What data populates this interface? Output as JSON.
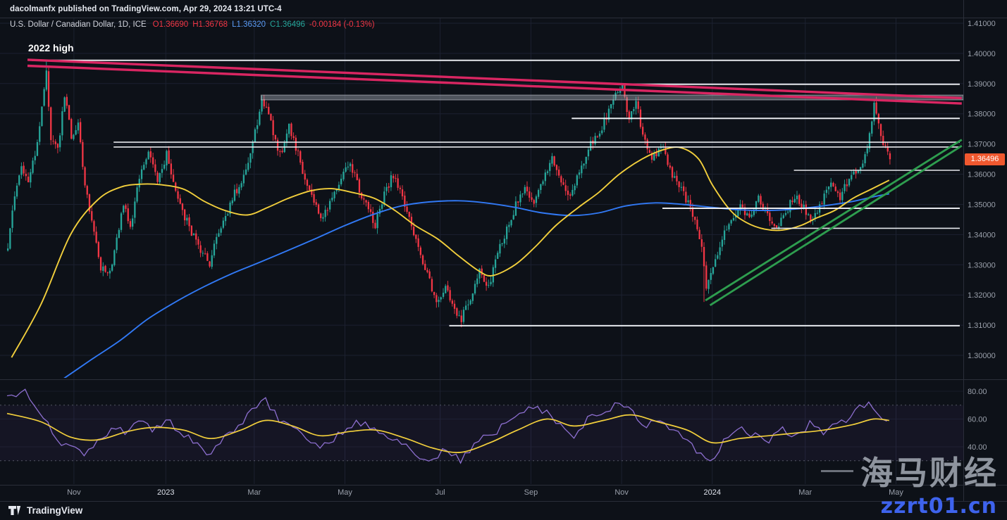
{
  "header": {
    "publisher": "dacolmanfx published on TradingView.com, Apr 29, 2024 13:21 UTC-4"
  },
  "legend": {
    "title": "U.S. Dollar / Canadian Dollar, 1D, ICE",
    "values": [
      {
        "name": "open",
        "text": "O1.36690",
        "color": "#f23645"
      },
      {
        "name": "high",
        "text": "H1.36768",
        "color": "#f23645"
      },
      {
        "name": "low",
        "text": "L1.36320",
        "color": "#5b9cf6"
      },
      {
        "name": "close",
        "text": "C1.36496",
        "color": "#26a69a"
      },
      {
        "name": "change",
        "text": "-0.00184 (-0.13%)",
        "color": "#f23645"
      }
    ]
  },
  "annotations": {
    "high_label": "2022 high"
  },
  "price_axis": {
    "last_price": "1.36496",
    "badge_color": "#f0582f"
  },
  "time_axis": {
    "ticks": [
      {
        "label": "Nov",
        "day": 29.5,
        "year": false
      },
      {
        "label": "2023",
        "day": 70,
        "year": true
      },
      {
        "label": "Mar",
        "day": 109,
        "year": false
      },
      {
        "label": "May",
        "day": 149,
        "year": false
      },
      {
        "label": "Jul",
        "day": 191,
        "year": false
      },
      {
        "label": "Sep",
        "day": 231,
        "year": false
      },
      {
        "label": "Nov",
        "day": 271,
        "year": false
      },
      {
        "label": "2024",
        "day": 311,
        "year": true
      },
      {
        "label": "Mar",
        "day": 352,
        "year": false
      },
      {
        "label": "May",
        "day": 392,
        "year": false
      }
    ]
  },
  "footer": {
    "logo_text": "TradingView"
  },
  "watermark": {
    "line1": "海马财经",
    "line2": "zzrt01.cn",
    "color1": "rgba(160,166,176,0.88)",
    "color2": "#3e63ed"
  },
  "colors": {
    "background": "#0d1118",
    "grid": "#1c2130",
    "separator": "#2a2e39",
    "axis_text": "#9aa0ab",
    "axis_text_bright": "#dde1ea",
    "up": "#26a69a",
    "down": "#f23645",
    "ma_fast": "#f2cf3c",
    "ma_slow": "#3179f5",
    "rsi": "#8d6fd0",
    "rsi_ma": "#f2cf3c",
    "rsi_band": "rgba(126,87,194,0.07)",
    "rsi_guide": "#8a8e9a",
    "level": "#f2f4f8",
    "trendline_down": "#d92662",
    "trendline_up": "#2e9e4f",
    "zone_fill": "rgba(160,166,178,0.45)",
    "zone_stroke": "rgba(200,204,212,0.6)"
  },
  "chart_data": {
    "type": "candlestick",
    "symbol": "USDCAD",
    "title": "U.S. Dollar / Canadian Dollar, 1D, ICE",
    "timeframe": "1D",
    "exchange": "ICE",
    "last": {
      "open": 1.3669,
      "high": 1.36768,
      "low": 1.3632,
      "close": 1.36496,
      "change": -0.00184,
      "change_pct": -0.13
    },
    "y_range": [
      1.2922,
      1.4119
    ],
    "rsi_range": [
      12,
      88
    ],
    "day_count": 389,
    "price_ticks": [
      1.41,
      1.4,
      1.39,
      1.38,
      1.37,
      1.36,
      1.35,
      1.34,
      1.33,
      1.32,
      1.31,
      1.3
    ],
    "rsi_ticks": [
      80,
      60,
      40
    ],
    "rsi_guides": [
      70,
      30
    ],
    "price_path": [
      [
        0,
        1.336
      ],
      [
        3,
        1.352
      ],
      [
        6,
        1.3635
      ],
      [
        9,
        1.356
      ],
      [
        13,
        1.371
      ],
      [
        16,
        1.388
      ],
      [
        17,
        1.394
      ],
      [
        19,
        1.3725
      ],
      [
        22,
        1.368
      ],
      [
        25,
        1.386
      ],
      [
        28,
        1.372
      ],
      [
        31,
        1.377
      ],
      [
        34,
        1.356
      ],
      [
        38,
        1.342
      ],
      [
        41,
        1.3295
      ],
      [
        45,
        1.327
      ],
      [
        48,
        1.3385
      ],
      [
        51,
        1.35
      ],
      [
        54,
        1.3415
      ],
      [
        58,
        1.359
      ],
      [
        62,
        1.368
      ],
      [
        66,
        1.358
      ],
      [
        70,
        1.3665
      ],
      [
        74,
        1.3545
      ],
      [
        78,
        1.346
      ],
      [
        82,
        1.339
      ],
      [
        86,
        1.334
      ],
      [
        89,
        1.3295
      ],
      [
        92,
        1.339
      ],
      [
        96,
        1.345
      ],
      [
        100,
        1.3535
      ],
      [
        104,
        1.359
      ],
      [
        108,
        1.37
      ],
      [
        112,
        1.3845
      ],
      [
        115,
        1.3795
      ],
      [
        118,
        1.3705
      ],
      [
        121,
        1.366
      ],
      [
        124,
        1.3755
      ],
      [
        127,
        1.369
      ],
      [
        131,
        1.359
      ],
      [
        135,
        1.35
      ],
      [
        139,
        1.345
      ],
      [
        143,
        1.3525
      ],
      [
        147,
        1.3585
      ],
      [
        151,
        1.3635
      ],
      [
        154,
        1.357
      ],
      [
        158,
        1.3495
      ],
      [
        162,
        1.343
      ],
      [
        166,
        1.353
      ],
      [
        170,
        1.36
      ],
      [
        173,
        1.354
      ],
      [
        177,
        1.3445
      ],
      [
        181,
        1.335
      ],
      [
        185,
        1.3265
      ],
      [
        189,
        1.318
      ],
      [
        193,
        1.322
      ],
      [
        197,
        1.3155
      ],
      [
        200,
        1.312
      ],
      [
        204,
        1.3195
      ],
      [
        208,
        1.328
      ],
      [
        212,
        1.3225
      ],
      [
        216,
        1.3335
      ],
      [
        220,
        1.3415
      ],
      [
        224,
        1.35
      ],
      [
        228,
        1.356
      ],
      [
        232,
        1.3505
      ],
      [
        236,
        1.359
      ],
      [
        240,
        1.365
      ],
      [
        244,
        1.358
      ],
      [
        248,
        1.3515
      ],
      [
        252,
        1.3605
      ],
      [
        256,
        1.369
      ],
      [
        260,
        1.3725
      ],
      [
        264,
        1.379
      ],
      [
        268,
        1.3875
      ],
      [
        271,
        1.389
      ],
      [
        274,
        1.378
      ],
      [
        277,
        1.3845
      ],
      [
        280,
        1.372
      ],
      [
        284,
        1.3645
      ],
      [
        288,
        1.37
      ],
      [
        292,
        1.3615
      ],
      [
        296,
        1.356
      ],
      [
        300,
        1.3505
      ],
      [
        303,
        1.3455
      ],
      [
        306,
        1.3365
      ],
      [
        308,
        1.3235
      ],
      [
        311,
        1.329
      ],
      [
        315,
        1.3385
      ],
      [
        319,
        1.345
      ],
      [
        323,
        1.3495
      ],
      [
        327,
        1.3455
      ],
      [
        331,
        1.352
      ],
      [
        335,
        1.3465
      ],
      [
        339,
        1.341
      ],
      [
        343,
        1.3475
      ],
      [
        347,
        1.353
      ],
      [
        351,
        1.349
      ],
      [
        355,
        1.3445
      ],
      [
        359,
        1.351
      ],
      [
        363,
        1.356
      ],
      [
        367,
        1.3525
      ],
      [
        371,
        1.3585
      ],
      [
        376,
        1.3615
      ],
      [
        379,
        1.3695
      ],
      [
        382,
        1.383
      ],
      [
        384,
        1.377
      ],
      [
        386,
        1.371
      ],
      [
        388,
        1.367
      ],
      [
        389,
        1.36496
      ]
    ],
    "pinned": {
      "17": {
        "high": 1.3977
      },
      "200": {
        "low": 1.3093
      },
      "271": {
        "high": 1.3899
      },
      "307": {
        "low": 1.3177
      },
      "382": {
        "high": 1.3846
      },
      "389": {
        "open": 1.3669,
        "high": 1.36768,
        "low": 1.3632,
        "close": 1.36496
      }
    },
    "sma_fast": [
      [
        2,
        1.2993
      ],
      [
        15,
        1.317
      ],
      [
        28,
        1.34
      ],
      [
        40,
        1.3515
      ],
      [
        50,
        1.3557
      ],
      [
        59,
        1.3567
      ],
      [
        68,
        1.3565
      ],
      [
        78,
        1.355
      ],
      [
        87,
        1.351
      ],
      [
        96,
        1.348
      ],
      [
        106,
        1.3465
      ],
      [
        115,
        1.349
      ],
      [
        124,
        1.352
      ],
      [
        134,
        1.3545
      ],
      [
        143,
        1.3552
      ],
      [
        152,
        1.354
      ],
      [
        162,
        1.352
      ],
      [
        171,
        1.348
      ],
      [
        180,
        1.343
      ],
      [
        190,
        1.3385
      ],
      [
        199,
        1.333
      ],
      [
        208,
        1.328
      ],
      [
        214,
        1.3264
      ],
      [
        224,
        1.33
      ],
      [
        233,
        1.336
      ],
      [
        242,
        1.343
      ],
      [
        252,
        1.349
      ],
      [
        261,
        1.354
      ],
      [
        270,
        1.36
      ],
      [
        280,
        1.365
      ],
      [
        289,
        1.368
      ],
      [
        297,
        1.3688
      ],
      [
        305,
        1.365
      ],
      [
        311,
        1.3565
      ],
      [
        319,
        1.348
      ],
      [
        326,
        1.344
      ],
      [
        334,
        1.3418
      ],
      [
        342,
        1.3415
      ],
      [
        350,
        1.343
      ],
      [
        357,
        1.3455
      ],
      [
        365,
        1.348
      ],
      [
        373,
        1.352
      ],
      [
        381,
        1.355
      ],
      [
        389,
        1.358
      ]
    ],
    "sma_slow": [
      [
        24,
        1.2918
      ],
      [
        37,
        1.2985
      ],
      [
        50,
        1.305
      ],
      [
        62,
        1.312
      ],
      [
        75,
        1.318
      ],
      [
        87,
        1.3228
      ],
      [
        99,
        1.327
      ],
      [
        112,
        1.331
      ],
      [
        124,
        1.3348
      ],
      [
        137,
        1.339
      ],
      [
        149,
        1.343
      ],
      [
        162,
        1.3468
      ],
      [
        174,
        1.3495
      ],
      [
        186,
        1.3508
      ],
      [
        199,
        1.3512
      ],
      [
        211,
        1.3505
      ],
      [
        224,
        1.349
      ],
      [
        236,
        1.3472
      ],
      [
        249,
        1.3463
      ],
      [
        261,
        1.3472
      ],
      [
        273,
        1.3495
      ],
      [
        286,
        1.3505
      ],
      [
        298,
        1.35
      ],
      [
        311,
        1.349
      ],
      [
        323,
        1.3482
      ],
      [
        336,
        1.348
      ],
      [
        348,
        1.3485
      ],
      [
        360,
        1.3495
      ],
      [
        373,
        1.351
      ],
      [
        382,
        1.3525
      ],
      [
        389,
        1.3535
      ]
    ],
    "rsi_path": [
      [
        0,
        76
      ],
      [
        8,
        82
      ],
      [
        14,
        66
      ],
      [
        22,
        46
      ],
      [
        28,
        38
      ],
      [
        34,
        35
      ],
      [
        40,
        43
      ],
      [
        47,
        55
      ],
      [
        53,
        50
      ],
      [
        59,
        58
      ],
      [
        65,
        52
      ],
      [
        71,
        58
      ],
      [
        78,
        48
      ],
      [
        84,
        42
      ],
      [
        90,
        34
      ],
      [
        96,
        48
      ],
      [
        103,
        56
      ],
      [
        109,
        67
      ],
      [
        114,
        74
      ],
      [
        120,
        60
      ],
      [
        126,
        54
      ],
      [
        132,
        47
      ],
      [
        138,
        40
      ],
      [
        144,
        46
      ],
      [
        151,
        56
      ],
      [
        157,
        58
      ],
      [
        163,
        51
      ],
      [
        169,
        47
      ],
      [
        176,
        41
      ],
      [
        182,
        34
      ],
      [
        188,
        30
      ],
      [
        194,
        39
      ],
      [
        200,
        31
      ],
      [
        207,
        42
      ],
      [
        213,
        49
      ],
      [
        219,
        55
      ],
      [
        225,
        63
      ],
      [
        231,
        69
      ],
      [
        238,
        64
      ],
      [
        244,
        54
      ],
      [
        250,
        48
      ],
      [
        256,
        60
      ],
      [
        263,
        66
      ],
      [
        269,
        71
      ],
      [
        275,
        67
      ],
      [
        281,
        55
      ],
      [
        287,
        58
      ],
      [
        294,
        51
      ],
      [
        300,
        44
      ],
      [
        306,
        33
      ],
      [
        311,
        27
      ],
      [
        317,
        46
      ],
      [
        323,
        56
      ],
      [
        329,
        48
      ],
      [
        336,
        43
      ],
      [
        342,
        53
      ],
      [
        348,
        48
      ],
      [
        354,
        56
      ],
      [
        360,
        50
      ],
      [
        367,
        58
      ],
      [
        373,
        63
      ],
      [
        380,
        74
      ],
      [
        385,
        64
      ],
      [
        389,
        56
      ]
    ],
    "rsi_ma_path": [
      [
        0,
        64
      ],
      [
        15,
        58
      ],
      [
        28,
        47
      ],
      [
        40,
        45
      ],
      [
        53,
        51
      ],
      [
        65,
        54
      ],
      [
        78,
        52
      ],
      [
        90,
        46
      ],
      [
        103,
        52
      ],
      [
        114,
        59
      ],
      [
        126,
        55
      ],
      [
        138,
        48
      ],
      [
        151,
        51
      ],
      [
        163,
        52
      ],
      [
        176,
        46
      ],
      [
        188,
        39
      ],
      [
        200,
        36
      ],
      [
        213,
        43
      ],
      [
        225,
        52
      ],
      [
        238,
        60
      ],
      [
        250,
        55
      ],
      [
        263,
        59
      ],
      [
        275,
        63
      ],
      [
        287,
        58
      ],
      [
        300,
        52
      ],
      [
        311,
        43
      ],
      [
        323,
        46
      ],
      [
        336,
        48
      ],
      [
        348,
        50
      ],
      [
        360,
        52
      ],
      [
        373,
        56
      ],
      [
        382,
        60
      ],
      [
        389,
        59
      ]
    ],
    "levels": [
      {
        "price": 1.3977,
        "from_day": 11,
        "width": 2
      },
      {
        "price": 1.3898,
        "from_day": 270,
        "width": 2
      },
      {
        "price": 1.3785,
        "from_day": 249,
        "width": 2
      },
      {
        "price": 1.3706,
        "from_day": 47,
        "width": 1.6
      },
      {
        "price": 1.369,
        "from_day": 47,
        "width": 1.6
      },
      {
        "price": 1.3613,
        "from_day": 347,
        "width": 1.6
      },
      {
        "price": 1.3487,
        "from_day": 289,
        "width": 2
      },
      {
        "price": 1.3421,
        "from_day": 337,
        "width": 1.6
      },
      {
        "price": 1.3098,
        "from_day": 195,
        "width": 2
      }
    ],
    "zone": {
      "top": 1.3862,
      "bottom": 1.3846,
      "from_day": 112
    },
    "trendlines_down": [
      [
        [
          9,
          1.3979
        ],
        [
          421,
          1.3852
        ]
      ],
      [
        [
          9,
          1.3959
        ],
        [
          421,
          1.3834
        ]
      ]
    ],
    "trendlines_up": [
      [
        [
          308,
          1.3182
        ],
        [
          421,
          1.3714
        ]
      ],
      [
        [
          310,
          1.3166
        ],
        [
          421,
          1.3694
        ]
      ]
    ]
  }
}
